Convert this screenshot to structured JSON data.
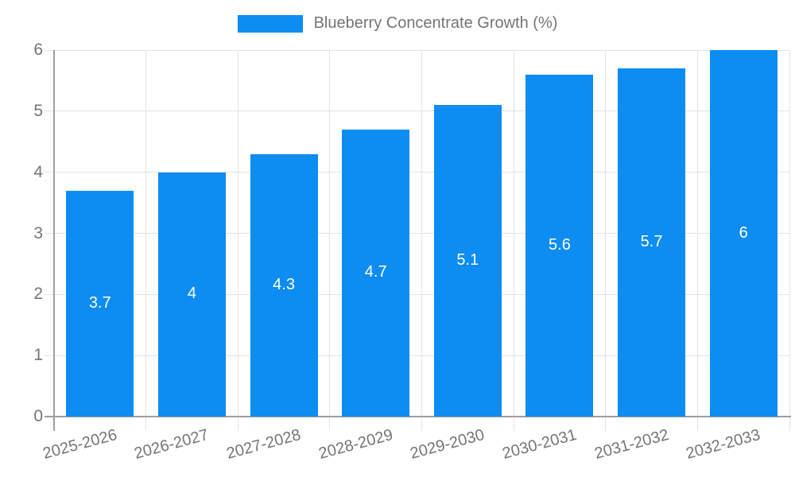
{
  "legend": {
    "label": "Blueberry Concentrate Growth (%)"
  },
  "colors": {
    "bar": "#0d8cf2",
    "axis": "#9e9e9e",
    "grid": "#e3e3e3",
    "tick_label": "#757575",
    "value_label": "#ffffff",
    "background": "#ffffff"
  },
  "chart_data": {
    "type": "bar",
    "title": "Blueberry Concentrate Growth (%)",
    "categories": [
      "2025-2026",
      "2026-2027",
      "2027-2028",
      "2028-2029",
      "2029-2030",
      "2030-2031",
      "2031-2032",
      "2032-2033"
    ],
    "values": [
      3.7,
      4,
      4.3,
      4.7,
      5.1,
      5.6,
      5.7,
      6
    ],
    "value_labels": [
      "3.7",
      "4",
      "4.3",
      "4.7",
      "5.1",
      "5.6",
      "5.7",
      "6"
    ],
    "xlabel": "",
    "ylabel": "",
    "ylim": [
      0,
      6
    ],
    "yticks": [
      0,
      1,
      2,
      3,
      4,
      5,
      6
    ],
    "grid": true,
    "legend_position": "top",
    "bar_label_position": "center",
    "xtick_rotation_deg": -15
  }
}
